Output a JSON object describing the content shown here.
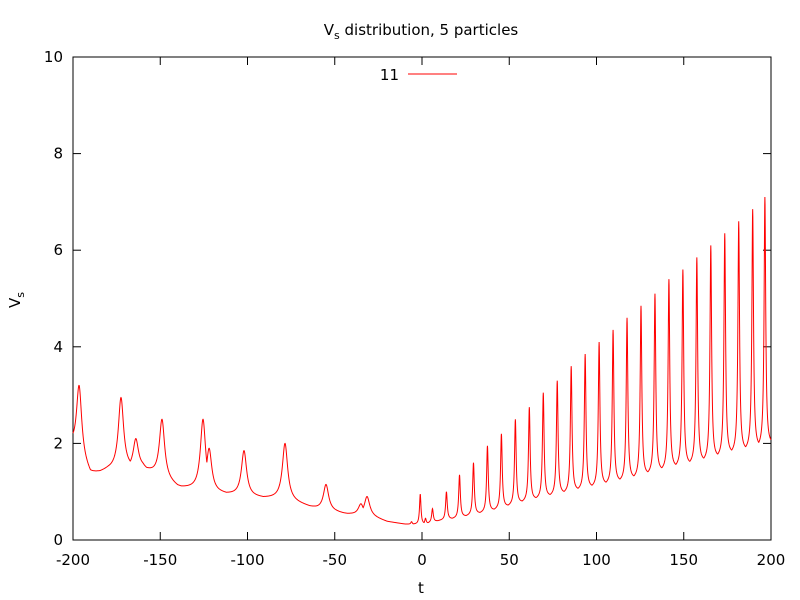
{
  "chart_data": {
    "type": "line",
    "title": "V",
    "title_sub": "s",
    "title_rest": " distribution, 5 particles",
    "xlabel": "t",
    "ylabel": "V",
    "ylabel_sub": "s",
    "xlim": [
      -200,
      200
    ],
    "ylim": [
      0,
      10
    ],
    "xticks": [
      -200,
      -150,
      -100,
      -50,
      0,
      50,
      100,
      150,
      200
    ],
    "yticks": [
      0,
      2,
      4,
      6,
      8,
      10
    ],
    "grid": false,
    "legend_position": "top-center",
    "series": [
      {
        "name": "11",
        "color": "#ff0000",
        "baseline": [
          [
            -200,
            1.9
          ],
          [
            -190,
            1.35
          ],
          [
            -180,
            1.45
          ],
          [
            -160,
            1.5
          ],
          [
            -140,
            1.1
          ],
          [
            -120,
            1.0
          ],
          [
            -100,
            0.9
          ],
          [
            -80,
            0.85
          ],
          [
            -60,
            0.65
          ],
          [
            -45,
            0.55
          ],
          [
            -30,
            0.5
          ],
          [
            -20,
            0.38
          ],
          [
            -10,
            0.33
          ],
          [
            0,
            0.32
          ],
          [
            10,
            0.4
          ],
          [
            20,
            0.45
          ],
          [
            40,
            0.6
          ],
          [
            60,
            0.8
          ],
          [
            80,
            0.95
          ],
          [
            100,
            1.1
          ],
          [
            120,
            1.25
          ],
          [
            140,
            1.45
          ],
          [
            160,
            1.6
          ],
          [
            180,
            1.8
          ],
          [
            200,
            1.95
          ]
        ],
        "peaks": [
          {
            "t": -196.5,
            "v": 3.2
          },
          {
            "t": -172.5,
            "v": 2.95
          },
          {
            "t": -164,
            "v": 2.1
          },
          {
            "t": -149,
            "v": 2.5
          },
          {
            "t": -125.5,
            "v": 2.5
          },
          {
            "t": -122,
            "v": 1.9
          },
          {
            "t": -102,
            "v": 1.85
          },
          {
            "t": -78.5,
            "v": 2.0
          },
          {
            "t": -55,
            "v": 1.15
          },
          {
            "t": -35,
            "v": 0.75
          },
          {
            "t": -31.5,
            "v": 0.9
          },
          {
            "t": -6,
            "v": 0.38
          },
          {
            "t": -1,
            "v": 0.95
          },
          {
            "t": 2,
            "v": 0.45
          },
          {
            "t": 6,
            "v": 0.65
          },
          {
            "t": 14,
            "v": 1.0
          },
          {
            "t": 21.5,
            "v": 1.35
          },
          {
            "t": 29.5,
            "v": 1.6
          },
          {
            "t": 37.5,
            "v": 1.95
          },
          {
            "t": 45.5,
            "v": 2.2
          },
          {
            "t": 53.5,
            "v": 2.5
          },
          {
            "t": 61.5,
            "v": 2.75
          },
          {
            "t": 69.5,
            "v": 3.05
          },
          {
            "t": 77.5,
            "v": 3.3
          },
          {
            "t": 85.5,
            "v": 3.6
          },
          {
            "t": 93.5,
            "v": 3.85
          },
          {
            "t": 101.5,
            "v": 4.1
          },
          {
            "t": 109.5,
            "v": 4.35
          },
          {
            "t": 117.5,
            "v": 4.6
          },
          {
            "t": 125.5,
            "v": 4.85
          },
          {
            "t": 133.5,
            "v": 5.1
          },
          {
            "t": 141.5,
            "v": 5.4
          },
          {
            "t": 149.5,
            "v": 5.6
          },
          {
            "t": 157.5,
            "v": 5.85
          },
          {
            "t": 165.5,
            "v": 6.1
          },
          {
            "t": 173.5,
            "v": 6.35
          },
          {
            "t": 181.5,
            "v": 6.6
          },
          {
            "t": 189.5,
            "v": 6.85
          },
          {
            "t": 196.5,
            "v": 7.1
          }
        ]
      }
    ]
  }
}
